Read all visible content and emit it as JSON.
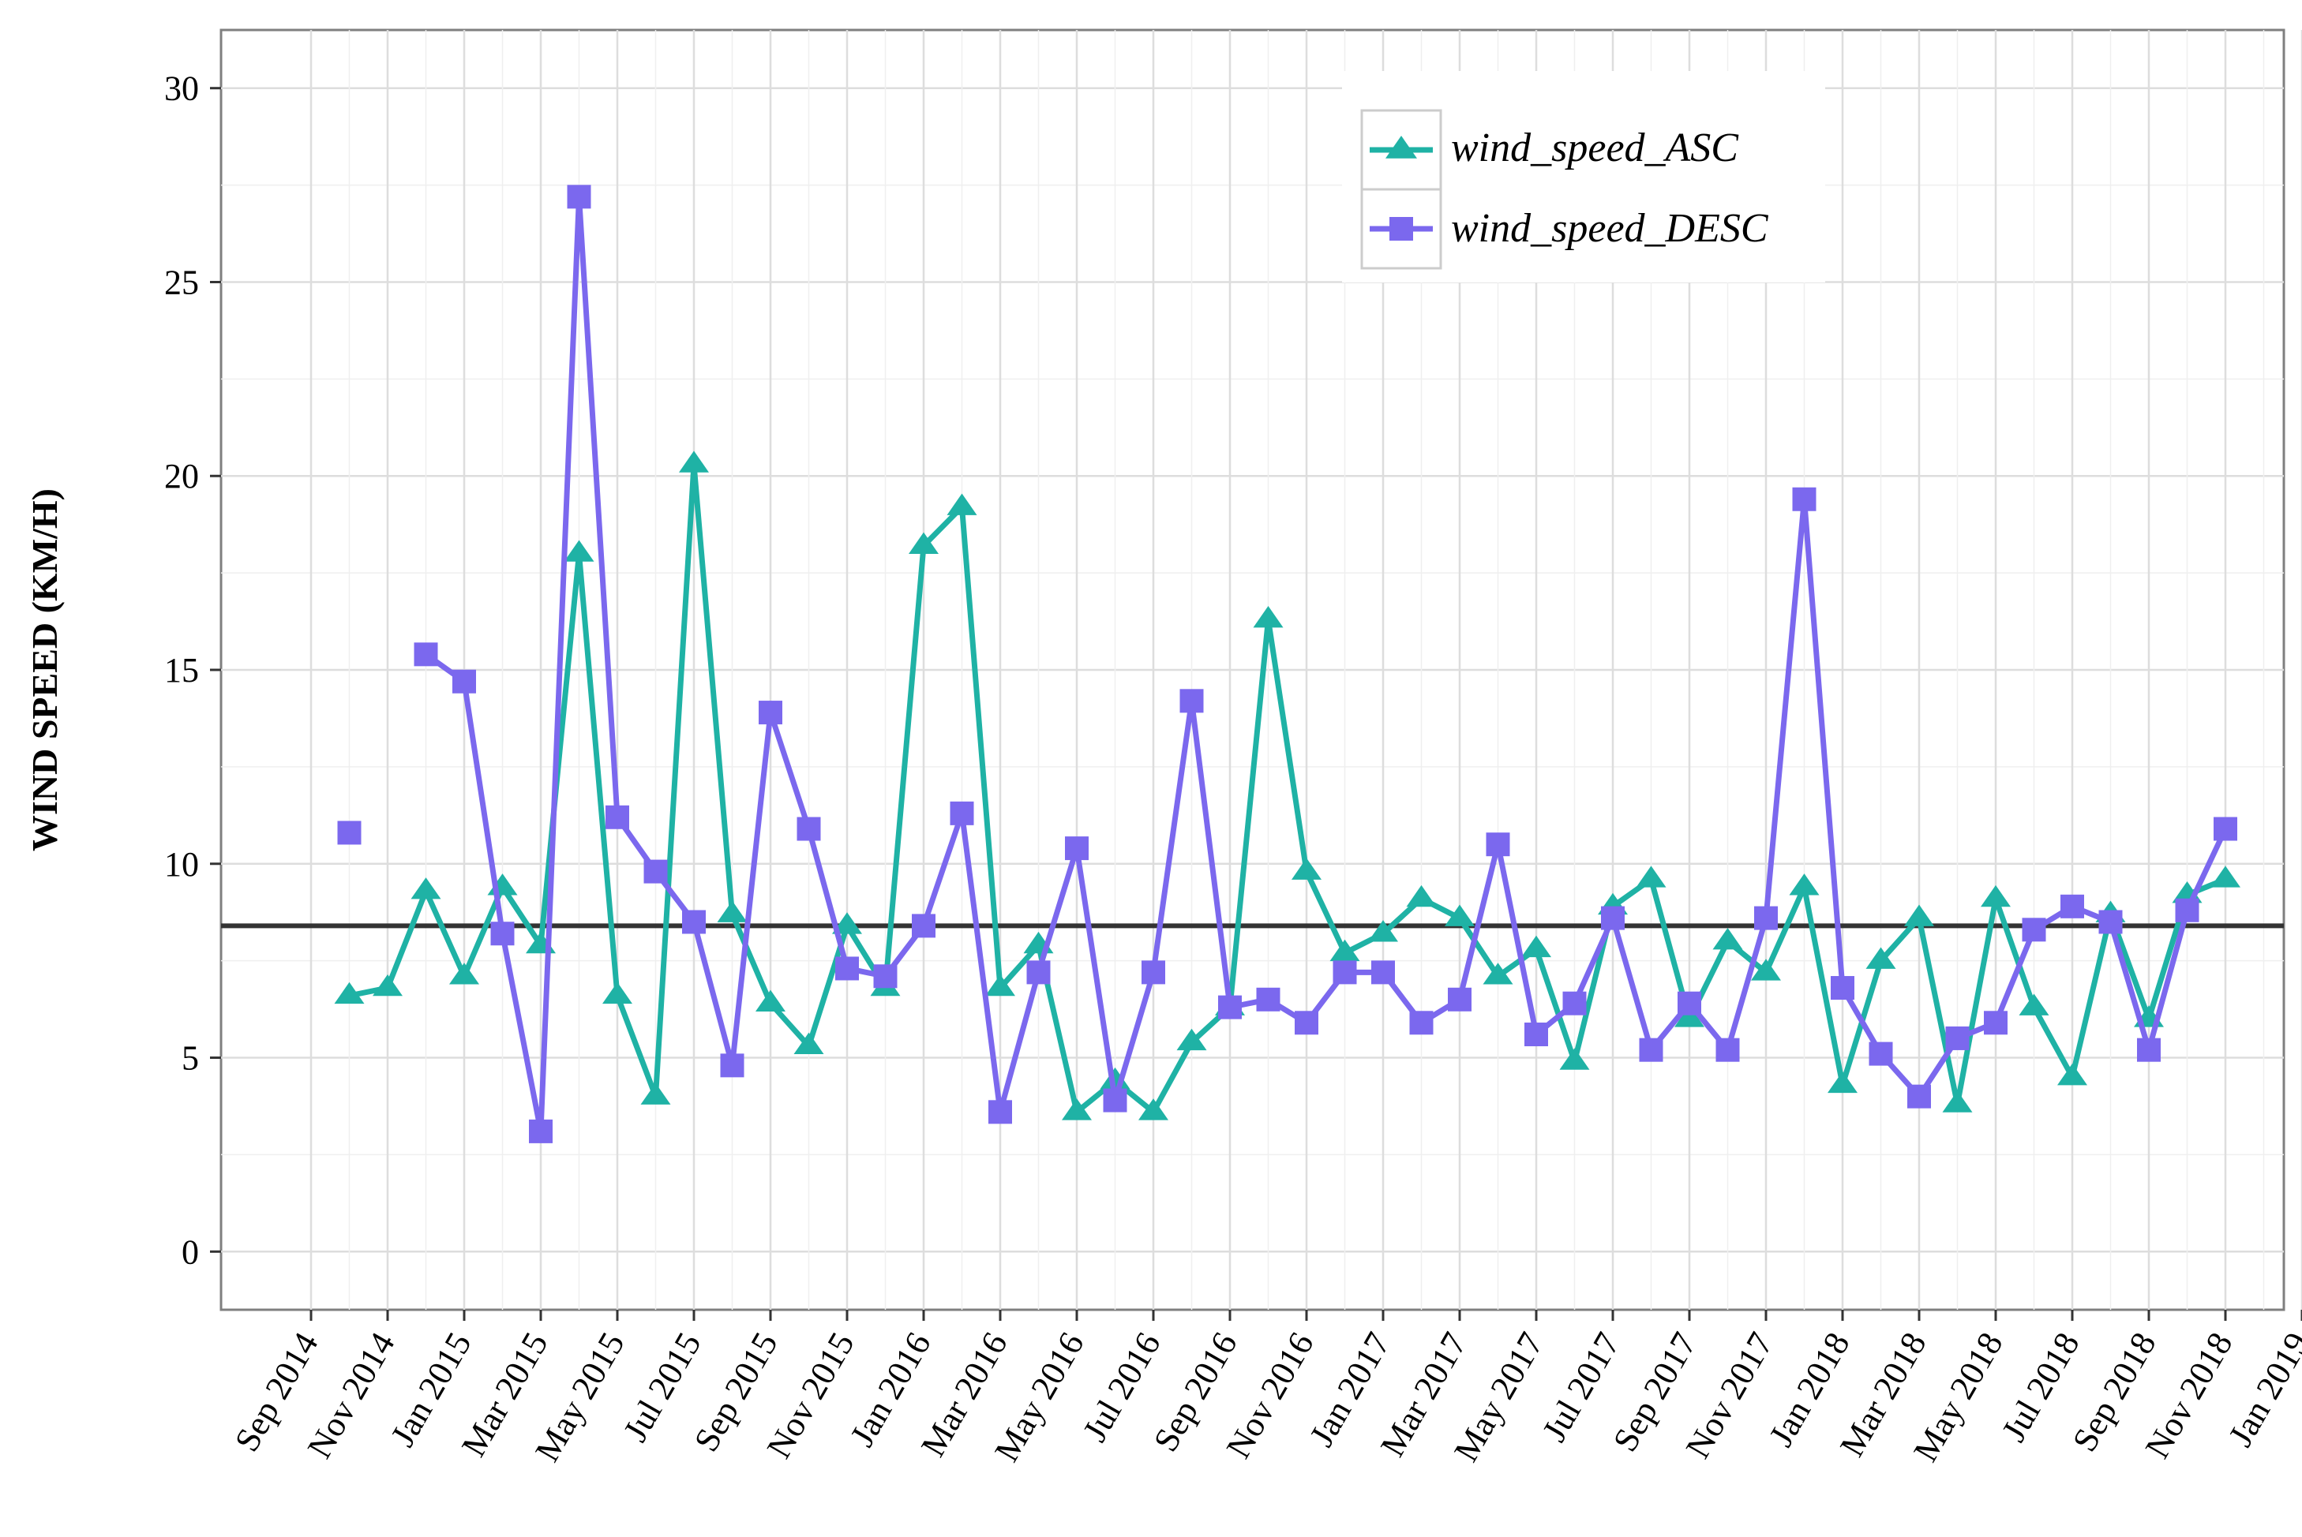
{
  "chart_data": {
    "type": "line",
    "title": "",
    "xlabel": "",
    "ylabel": "WIND SPEED (KM/H)",
    "ylim": [
      -1.5,
      31.5
    ],
    "yticks": [
      0,
      5,
      10,
      15,
      20,
      25,
      30
    ],
    "xticks": [
      "Sep 2014",
      "Nov 2014",
      "Jan 2015",
      "Mar 2015",
      "May 2015",
      "Jul 2015",
      "Sep 2015",
      "Nov 2015",
      "Jan 2016",
      "Mar 2016",
      "May 2016",
      "Jul 2016",
      "Sep 2016",
      "Nov 2016",
      "Jan 2017",
      "Mar 2017",
      "May 2017",
      "Jul 2017",
      "Sep 2017",
      "Nov 2017",
      "Jan 2018",
      "Mar 2018",
      "May 2018",
      "Jul 2018",
      "Sep 2018",
      "Nov 2018",
      "Jan 2019"
    ],
    "x": [
      "Oct 2014",
      "Nov 2014",
      "Dec 2014",
      "Jan 2015",
      "Feb 2015",
      "Mar 2015",
      "Apr 2015",
      "May 2015",
      "Jun 2015",
      "Jul 2015",
      "Aug 2015",
      "Sep 2015",
      "Oct 2015",
      "Nov 2015",
      "Dec 2015",
      "Jan 2016",
      "Feb 2016",
      "Mar 2016",
      "Apr 2016",
      "May 2016",
      "Jun 2016",
      "Jul 2016",
      "Aug 2016",
      "Sep 2016",
      "Oct 2016",
      "Nov 2016",
      "Dec 2016",
      "Jan 2017",
      "Feb 2017",
      "Mar 2017",
      "Apr 2017",
      "May 2017",
      "Jun 2017",
      "Jul 2017",
      "Aug 2017",
      "Sep 2017",
      "Oct 2017",
      "Nov 2017",
      "Dec 2017",
      "Jan 2018",
      "Feb 2018",
      "Mar 2018",
      "Apr 2018",
      "May 2018",
      "Jun 2018",
      "Jul 2018",
      "Aug 2018",
      "Sep 2018",
      "Oct 2018",
      "Nov 2018"
    ],
    "series": [
      {
        "name": "wind_speed_ASC",
        "color": "#1fb2a5",
        "marker": "triangle",
        "values": [
          6.6,
          6.8,
          9.3,
          7.1,
          9.4,
          7.9,
          18.0,
          6.6,
          4.0,
          20.3,
          8.7,
          6.4,
          5.3,
          8.4,
          6.8,
          18.2,
          19.2,
          6.8,
          7.9,
          3.6,
          4.4,
          3.6,
          5.4,
          6.3,
          16.3,
          9.8,
          7.7,
          8.2,
          9.1,
          8.6,
          7.1,
          7.8,
          4.9,
          8.9,
          9.6,
          6.0,
          8.0,
          7.2,
          9.4,
          4.3,
          7.5,
          8.6,
          3.8,
          9.1,
          6.3,
          4.5,
          8.7,
          6.0,
          9.2,
          9.6
        ]
      },
      {
        "name": "wind_speed_DESC",
        "color": "#7b68ee",
        "marker": "square",
        "values": [
          10.8,
          null,
          15.4,
          14.7,
          8.2,
          3.1,
          27.2,
          11.2,
          9.8,
          8.5,
          4.8,
          13.9,
          10.9,
          7.3,
          7.1,
          8.4,
          11.3,
          3.6,
          7.2,
          10.4,
          3.9,
          7.2,
          14.2,
          6.3,
          6.5,
          5.9,
          7.2,
          7.2,
          5.9,
          6.5,
          10.5,
          5.6,
          6.4,
          8.6,
          5.2,
          6.4,
          5.2,
          8.6,
          19.4,
          6.8,
          5.1,
          4.0,
          5.5,
          5.9,
          8.3,
          8.9,
          8.5,
          5.2,
          8.8,
          10.9
        ]
      }
    ],
    "reference_line": {
      "y": 8.4,
      "color": "#333333"
    },
    "legend": {
      "position": "top-right",
      "entries": [
        "wind_speed_ASC",
        "wind_speed_DESC"
      ]
    },
    "grid": true
  }
}
